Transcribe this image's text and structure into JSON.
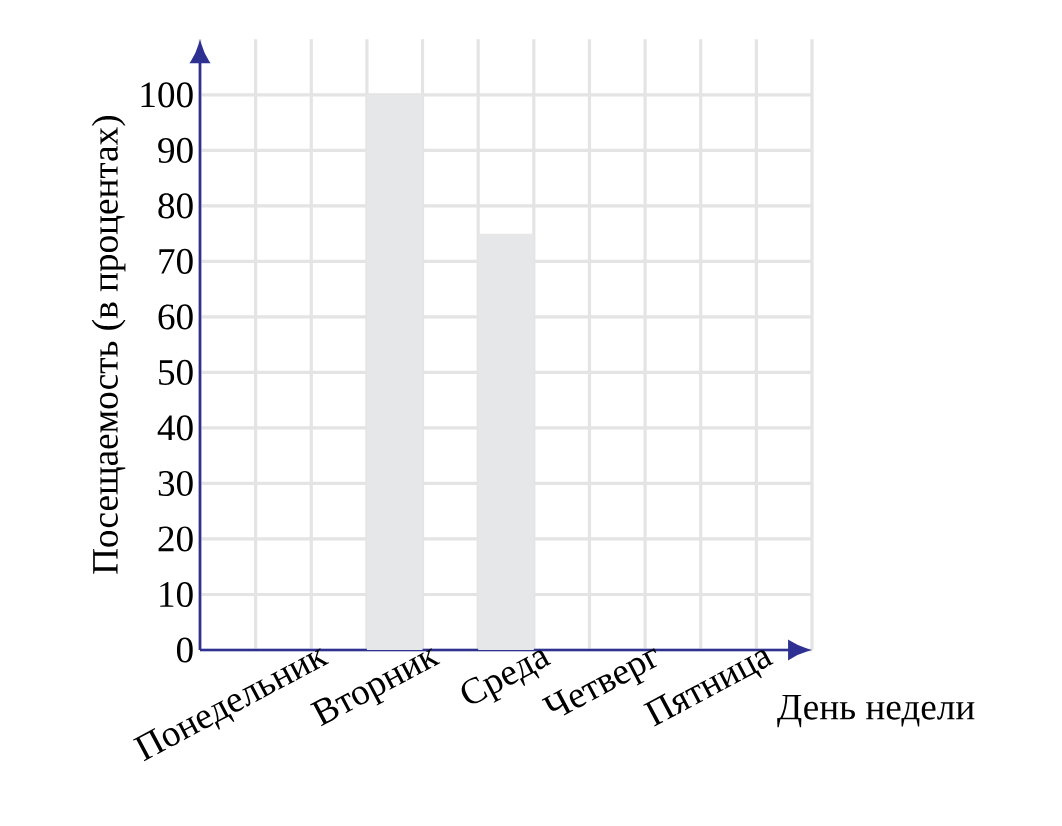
{
  "chart_data": {
    "type": "bar",
    "xlabel": "День недели",
    "ylabel": "Посещаемость (в процентах)",
    "categories": [
      "Понедельник",
      "Вторник",
      "Среда",
      "Четверг",
      "Пятница"
    ],
    "values": [
      null,
      100,
      75,
      null,
      null
    ],
    "color": "#e6e7e8",
    "ylim": [
      0,
      110
    ],
    "yticks": [
      0,
      10,
      20,
      30,
      40,
      50,
      60,
      70,
      80,
      90,
      100
    ],
    "grid": true
  }
}
